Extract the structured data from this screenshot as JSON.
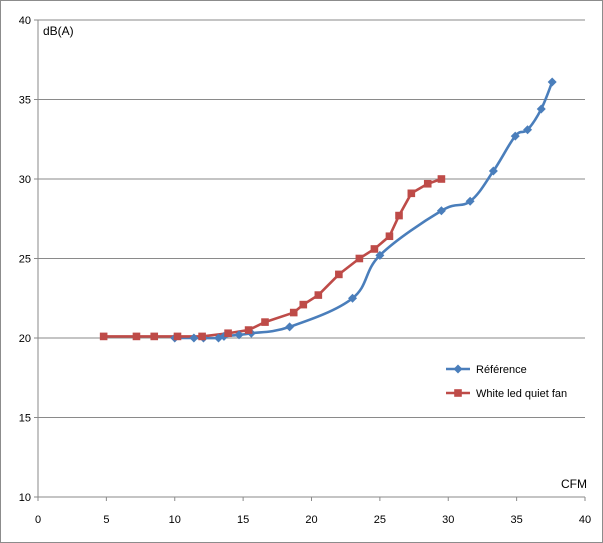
{
  "chart_data": {
    "type": "line",
    "xlabel": "CFM",
    "ylabel": "dB(A)",
    "xlim": [
      0,
      40
    ],
    "ylim": [
      10,
      40
    ],
    "x_ticks": [
      "0",
      "5",
      "10",
      "15",
      "20",
      "25",
      "30",
      "35",
      "40"
    ],
    "y_ticks": [
      "10",
      "15",
      "20",
      "25",
      "30",
      "35",
      "40"
    ],
    "grid": "horizontal",
    "legend_position": "right",
    "series": [
      {
        "name": "Référence",
        "color": "#4a7ebb",
        "marker": "diamond",
        "smooth": true,
        "x": [
          10.0,
          11.4,
          12.1,
          13.2,
          13.6,
          14.7,
          15.6,
          18.4,
          23.0,
          25.0,
          29.5,
          31.6,
          33.3,
          34.9,
          35.8,
          36.8,
          37.6
        ],
        "y": [
          20.0,
          20.0,
          20.0,
          20.0,
          20.1,
          20.2,
          20.3,
          20.7,
          22.5,
          25.2,
          28.0,
          28.6,
          30.5,
          32.7,
          33.1,
          34.4,
          36.1
        ]
      },
      {
        "name": "White led quiet fan",
        "color": "#be4b48",
        "marker": "square",
        "smooth": false,
        "x": [
          4.8,
          7.2,
          8.5,
          10.2,
          12.0,
          13.9,
          15.4,
          16.6,
          18.7,
          19.4,
          20.5,
          22.0,
          23.5,
          24.6,
          25.7,
          26.4,
          27.3,
          28.5,
          29.5
        ],
        "y": [
          20.1,
          20.1,
          20.1,
          20.1,
          20.1,
          20.3,
          20.5,
          21.0,
          21.6,
          22.1,
          22.7,
          24.0,
          25.0,
          25.6,
          26.4,
          27.7,
          29.1,
          29.7,
          30.0
        ]
      }
    ]
  }
}
